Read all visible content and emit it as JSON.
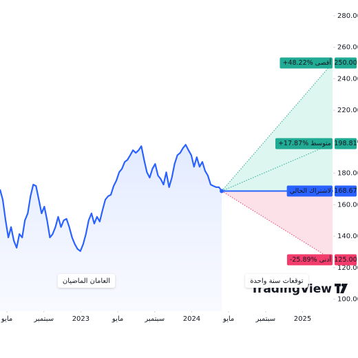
{
  "chart_data": {
    "type": "forecast",
    "xlim": [
      -0.75,
      38.0
    ],
    "xticks": [
      {
        "value": 0,
        "label": "مايو"
      },
      {
        "value": 4,
        "label": "سبتمبر"
      },
      {
        "value": 8,
        "label": "2023"
      },
      {
        "value": 12,
        "label": "مايو"
      },
      {
        "value": 16,
        "label": "سبتمبر"
      },
      {
        "value": 20,
        "label": "2024"
      },
      {
        "value": 24,
        "label": "مايو"
      },
      {
        "value": 28,
        "label": "سبتمبر"
      },
      {
        "value": 32,
        "label": "2025"
      }
    ],
    "ylim": [
      95,
      290
    ],
    "yticks": [
      {
        "value": 100,
        "label": "100.00"
      },
      {
        "value": 120,
        "label": "120.00"
      },
      {
        "value": 140,
        "label": "140.00"
      },
      {
        "value": 160,
        "label": "160.00"
      },
      {
        "value": 180,
        "label": "180.00"
      },
      {
        "value": 200,
        "label": "200.00"
      },
      {
        "value": 220,
        "label": "220.00"
      },
      {
        "value": 240,
        "label": "240.00"
      },
      {
        "value": 260,
        "label": "260.00"
      },
      {
        "value": 280,
        "label": "280.00"
      }
    ],
    "series": [
      {
        "color": "#2962ff",
        "x": [
          -0.75,
          -0.45,
          -0.15,
          0.15,
          0.45,
          0.75,
          1.05,
          1.35,
          1.65,
          1.95,
          2.25,
          2.55,
          2.85,
          3.15,
          3.45,
          3.75,
          4.05,
          4.35,
          4.65,
          4.95,
          5.25,
          5.55,
          5.85,
          6.15,
          6.45,
          6.75,
          7.05,
          7.35,
          7.65,
          7.95,
          8.25,
          8.55,
          8.85,
          9.15,
          9.45,
          9.75,
          10.05,
          10.35,
          10.65,
          10.95,
          11.25,
          11.55,
          11.85,
          12.15,
          12.45,
          12.75,
          13.05,
          13.35,
          13.65,
          13.95,
          14.25,
          14.55,
          14.85,
          15.15,
          15.45,
          15.75,
          16.05,
          16.35,
          16.65,
          16.95,
          17.25,
          17.55,
          17.85,
          18.15,
          18.45,
          18.75,
          19.05,
          19.35,
          19.65,
          19.95,
          20.25,
          20.55,
          20.85,
          21.15,
          21.45,
          21.75,
          22.05,
          22.35,
          22.65,
          22.95,
          23.25
        ],
        "values": [
          169.7,
          163.2,
          150.1,
          139.2,
          145.8,
          137.1,
          132.7,
          141.4,
          139.2,
          150.1,
          154.5,
          165.4,
          172.8,
          171.9,
          163.2,
          154.5,
          158.8,
          150.1,
          139.2,
          141.4,
          145.8,
          152.3,
          145.8,
          150.1,
          151.0,
          145.8,
          139.2,
          134.9,
          131.8,
          130.5,
          134.9,
          141.4,
          150.1,
          154.5,
          148.0,
          152.3,
          149.3,
          156.7,
          163.2,
          165.4,
          166.3,
          171.9,
          175.4,
          180.6,
          182.8,
          187.2,
          188.5,
          191.5,
          194.6,
          192.9,
          194.6,
          197.2,
          188.5,
          180.6,
          177.2,
          182.8,
          185.9,
          178.5,
          176.3,
          172.8,
          180.6,
          171.1,
          177.2,
          185.9,
          191.5,
          192.9,
          195.9,
          198.1,
          194.6,
          191.5,
          184.1,
          190.2,
          184.1,
          187.2,
          181.5,
          178.5,
          172.8,
          171.9,
          171.1,
          171.1,
          168.67
        ]
      }
    ],
    "history_label": "العامان الماضيان",
    "forecast_label": "توقعات سنة واحدة",
    "watermark": "TradingView",
    "current": {
      "name": "لاشتراك الحالي",
      "value": 168.67,
      "value_label": "168.67",
      "color": "#2962ff"
    },
    "forecast": {
      "x": 35.25,
      "names": [
        "أقصى",
        "متوسط",
        "أدنى"
      ],
      "values": [
        250,
        198.81,
        125
      ],
      "value_labels": [
        "250.00",
        "198.81",
        "125.00"
      ],
      "changes": [
        48.22,
        17.87,
        -25.89
      ],
      "change_labels": [
        "+48.22%",
        "+17.87%",
        "-25.89%"
      ],
      "colors": [
        "#22ab94",
        "#22ab94",
        "#f23c6b"
      ],
      "up_fill": "#ddf6ef",
      "down_fill": "#fde1e8"
    }
  }
}
